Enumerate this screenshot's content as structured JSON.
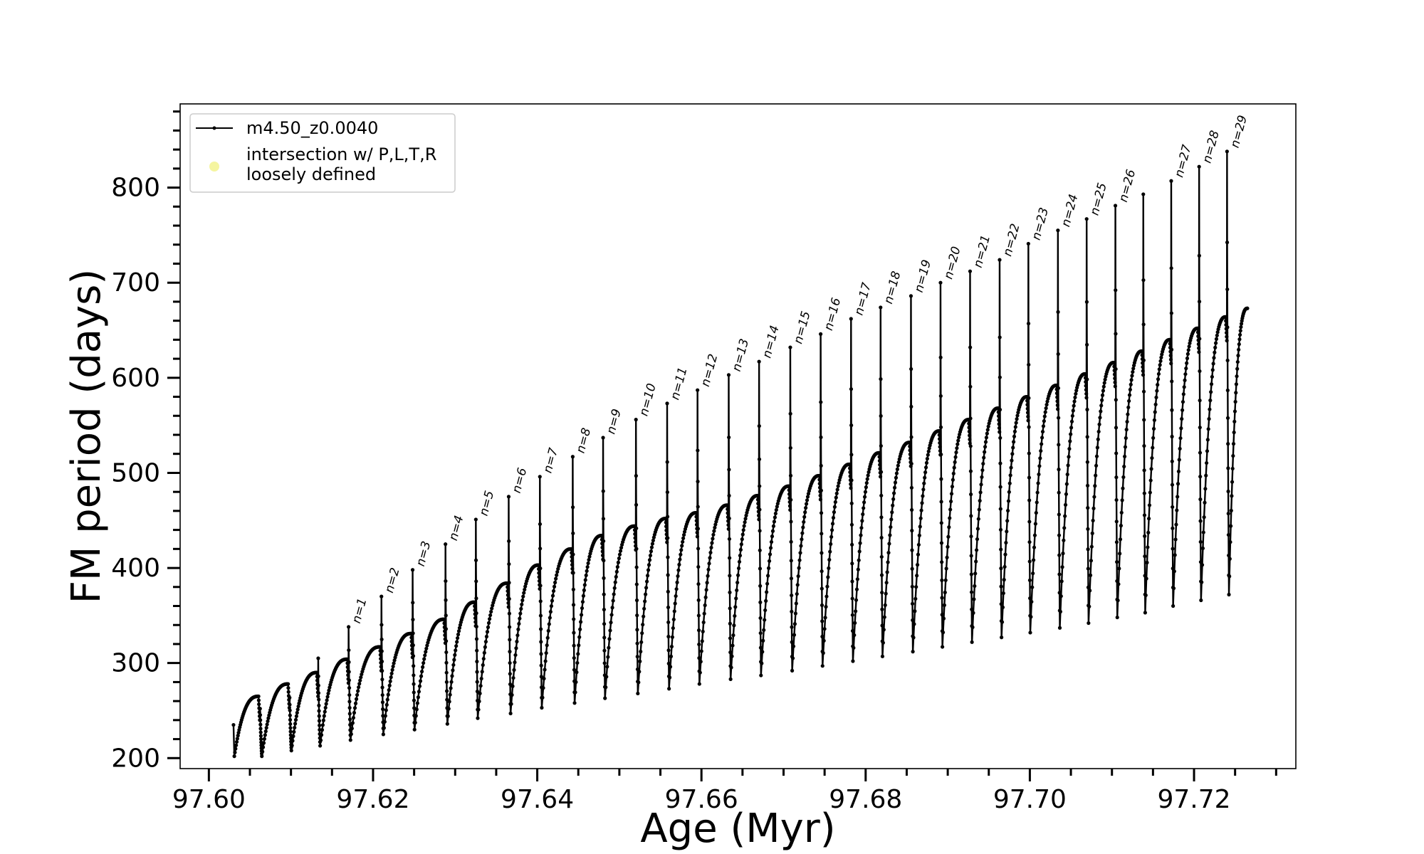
{
  "chart_data": {
    "type": "line",
    "xlabel": "Age (Myr)",
    "ylabel": "FM period (days)",
    "xlim": [
      97.5965,
      97.7324
    ],
    "ylim": [
      189,
      888
    ],
    "x_ticks": [
      97.6,
      97.62,
      97.64,
      97.66,
      97.68,
      97.7,
      97.72
    ],
    "x_tick_labels": [
      "97.60",
      "97.62",
      "97.64",
      "97.66",
      "97.68",
      "97.70",
      "97.72"
    ],
    "y_ticks": [
      200,
      300,
      400,
      500,
      600,
      700,
      800
    ],
    "y_tick_labels": [
      "200",
      "300",
      "400",
      "500",
      "600",
      "700",
      "800"
    ],
    "grid": false,
    "legend_position": "top-left",
    "series": [
      {
        "name": "m4.50_z0.0040",
        "color": "#000000",
        "marker": "point",
        "start_age": 97.603,
        "start_period": 235,
        "end_age": 97.7265,
        "end_period": 673,
        "cycles": [
          {
            "flash_age": 97.6062,
            "peak": 265,
            "min": 202,
            "spike": null
          },
          {
            "flash_age": 97.6098,
            "peak": 278,
            "min": 208,
            "spike": null
          },
          {
            "flash_age": 97.6133,
            "peak": 290,
            "min": 213,
            "spike": 305
          },
          {
            "flash_age": 97.617,
            "peak": 304,
            "min": 219,
            "spike": 338
          },
          {
            "flash_age": 97.621,
            "peak": 317,
            "min": 225,
            "spike": 370
          },
          {
            "flash_age": 97.6248,
            "peak": 331,
            "min": 230,
            "spike": 398
          },
          {
            "flash_age": 97.6288,
            "peak": 346,
            "min": 236,
            "spike": 425
          },
          {
            "flash_age": 97.6325,
            "peak": 364,
            "min": 242,
            "spike": 451
          },
          {
            "flash_age": 97.6365,
            "peak": 384,
            "min": 247,
            "spike": 475
          },
          {
            "flash_age": 97.6403,
            "peak": 403,
            "min": 253,
            "spike": 496
          },
          {
            "flash_age": 97.6443,
            "peak": 420,
            "min": 258,
            "spike": 517
          },
          {
            "flash_age": 97.648,
            "peak": 434,
            "min": 263,
            "spike": 537
          },
          {
            "flash_age": 97.652,
            "peak": 444,
            "min": 268,
            "spike": 556
          },
          {
            "flash_age": 97.6558,
            "peak": 452,
            "min": 273,
            "spike": 573
          },
          {
            "flash_age": 97.6595,
            "peak": 458,
            "min": 278,
            "spike": 587
          },
          {
            "flash_age": 97.6633,
            "peak": 466,
            "min": 283,
            "spike": 603
          },
          {
            "flash_age": 97.667,
            "peak": 476,
            "min": 287,
            "spike": 617
          },
          {
            "flash_age": 97.6708,
            "peak": 486,
            "min": 292,
            "spike": 632
          },
          {
            "flash_age": 97.6745,
            "peak": 497,
            "min": 297,
            "spike": 646
          },
          {
            "flash_age": 97.6782,
            "peak": 509,
            "min": 302,
            "spike": 662
          },
          {
            "flash_age": 97.6818,
            "peak": 521,
            "min": 307,
            "spike": 674
          },
          {
            "flash_age": 97.6855,
            "peak": 532,
            "min": 312,
            "spike": 686
          },
          {
            "flash_age": 97.6891,
            "peak": 544,
            "min": 317,
            "spike": 700
          },
          {
            "flash_age": 97.6927,
            "peak": 556,
            "min": 322,
            "spike": 712
          },
          {
            "flash_age": 97.6963,
            "peak": 568,
            "min": 327,
            "spike": 724
          },
          {
            "flash_age": 97.6998,
            "peak": 580,
            "min": 332,
            "spike": 741
          },
          {
            "flash_age": 97.7034,
            "peak": 592,
            "min": 337,
            "spike": 755
          },
          {
            "flash_age": 97.7069,
            "peak": 604,
            "min": 342,
            "spike": 767
          },
          {
            "flash_age": 97.7104,
            "peak": 616,
            "min": 348,
            "spike": 781
          },
          {
            "flash_age": 97.7138,
            "peak": 628,
            "min": 353,
            "spike": 793
          },
          {
            "flash_age": 97.7172,
            "peak": 640,
            "min": 360,
            "spike": 807
          },
          {
            "flash_age": 97.7206,
            "peak": 652,
            "min": 366,
            "spike": 822
          },
          {
            "flash_age": 97.724,
            "peak": 664,
            "min": 372,
            "spike": 838
          }
        ]
      },
      {
        "name": "intersection w/ P,L,T,R loosely defined",
        "legend_lines": [
          "intersection w/ P,L,T,R",
          "loosely defined"
        ],
        "color": "#f5f5a0",
        "marker": "circle",
        "points": []
      }
    ],
    "annotations": [
      {
        "text": "n=1",
        "age": 97.617,
        "period": 338
      },
      {
        "text": "n=2",
        "age": 97.621,
        "period": 370
      },
      {
        "text": "n=3",
        "age": 97.6248,
        "period": 398
      },
      {
        "text": "n=4",
        "age": 97.6288,
        "period": 425
      },
      {
        "text": "n=5",
        "age": 97.6325,
        "period": 451
      },
      {
        "text": "n=6",
        "age": 97.6365,
        "period": 475
      },
      {
        "text": "n=7",
        "age": 97.6403,
        "period": 496
      },
      {
        "text": "n=8",
        "age": 97.6443,
        "period": 517
      },
      {
        "text": "n=9",
        "age": 97.648,
        "period": 537
      },
      {
        "text": "n=10",
        "age": 97.652,
        "period": 556
      },
      {
        "text": "n=11",
        "age": 97.6558,
        "period": 573
      },
      {
        "text": "n=12",
        "age": 97.6595,
        "period": 587
      },
      {
        "text": "n=13",
        "age": 97.6633,
        "period": 603
      },
      {
        "text": "n=14",
        "age": 97.667,
        "period": 617
      },
      {
        "text": "n=15",
        "age": 97.6708,
        "period": 632
      },
      {
        "text": "n=16",
        "age": 97.6745,
        "period": 646
      },
      {
        "text": "n=17",
        "age": 97.6782,
        "period": 662
      },
      {
        "text": "n=18",
        "age": 97.6818,
        "period": 674
      },
      {
        "text": "n=19",
        "age": 97.6855,
        "period": 686
      },
      {
        "text": "n=20",
        "age": 97.6891,
        "period": 700
      },
      {
        "text": "n=21",
        "age": 97.6927,
        "period": 712
      },
      {
        "text": "n=22",
        "age": 97.6963,
        "period": 724
      },
      {
        "text": "n=23",
        "age": 97.6998,
        "period": 741
      },
      {
        "text": "n=24",
        "age": 97.7034,
        "period": 755
      },
      {
        "text": "n=25",
        "age": 97.7069,
        "period": 767
      },
      {
        "text": "n=26",
        "age": 97.7104,
        "period": 781
      },
      {
        "text": "n=27",
        "age": 97.7172,
        "period": 807
      },
      {
        "text": "n=28",
        "age": 97.7206,
        "period": 822
      },
      {
        "text": "n=29",
        "age": 97.724,
        "period": 838
      }
    ]
  }
}
